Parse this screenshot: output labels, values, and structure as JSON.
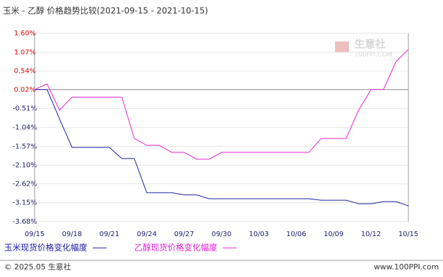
{
  "chart_data": {
    "type": "line",
    "title": "玉米 - 乙醇 价格趋势比较(2021-09-15 - 2021-10-15)",
    "categories": [
      "09/15",
      null,
      null,
      "09/18",
      null,
      null,
      "09/21",
      null,
      null,
      "09/24",
      null,
      null,
      "09/27",
      null,
      null,
      "09/30",
      null,
      null,
      "10/03",
      null,
      null,
      "10/06",
      null,
      null,
      "10/09",
      null,
      null,
      "10/12",
      null,
      null,
      "10/15"
    ],
    "series": [
      {
        "name": "玉米现货价格变化幅度",
        "color": "#1a1aa6",
        "values": [
          0.02,
          0.02,
          -0.8,
          -1.6,
          -1.6,
          -1.6,
          -1.6,
          -1.91,
          -1.91,
          -2.87,
          -2.87,
          -2.87,
          -2.93,
          -2.93,
          -3.04,
          -3.04,
          -3.04,
          -3.04,
          -3.04,
          -3.04,
          -3.04,
          -3.04,
          -3.04,
          -3.08,
          -3.08,
          -3.08,
          -3.18,
          -3.18,
          -3.12,
          -3.12,
          -3.24
        ]
      },
      {
        "name": "乙醇现货价格变化幅度",
        "color": "#e020d0",
        "values": [
          0.02,
          0.18,
          -0.56,
          -0.19,
          -0.19,
          -0.19,
          -0.19,
          -0.19,
          -1.35,
          -1.54,
          -1.54,
          -1.74,
          -1.74,
          -1.93,
          -1.93,
          -1.74,
          -1.74,
          -1.74,
          -1.74,
          -1.74,
          -1.74,
          -1.74,
          -1.74,
          -1.35,
          -1.35,
          -1.35,
          -0.56,
          0.02,
          0.02,
          0.8,
          1.15
        ]
      }
    ],
    "ylim": [
      -3.68,
      1.6
    ],
    "yticks": [
      {
        "value": 1.6,
        "label": "1.60%"
      },
      {
        "value": 1.07,
        "label": "1.07%"
      },
      {
        "value": 0.54,
        "label": "0.54%"
      },
      {
        "value": 0.02,
        "label": "0.02%"
      },
      {
        "value": -0.51,
        "label": "-0.51%"
      },
      {
        "value": -1.04,
        "label": "-1.04%"
      },
      {
        "value": -1.57,
        "label": "-1.57%"
      },
      {
        "value": -2.1,
        "label": "-2.10%"
      },
      {
        "value": -2.62,
        "label": "-2.62%"
      },
      {
        "value": -3.15,
        "label": "-3.15%"
      },
      {
        "value": -3.68,
        "label": "-3.68%"
      }
    ],
    "grid": true,
    "watermark": {
      "name": "生意社",
      "site": "100PPI.COM"
    },
    "footer": {
      "copyright": "© 2025.05 生意社",
      "url": "www.100PPI.com"
    }
  }
}
